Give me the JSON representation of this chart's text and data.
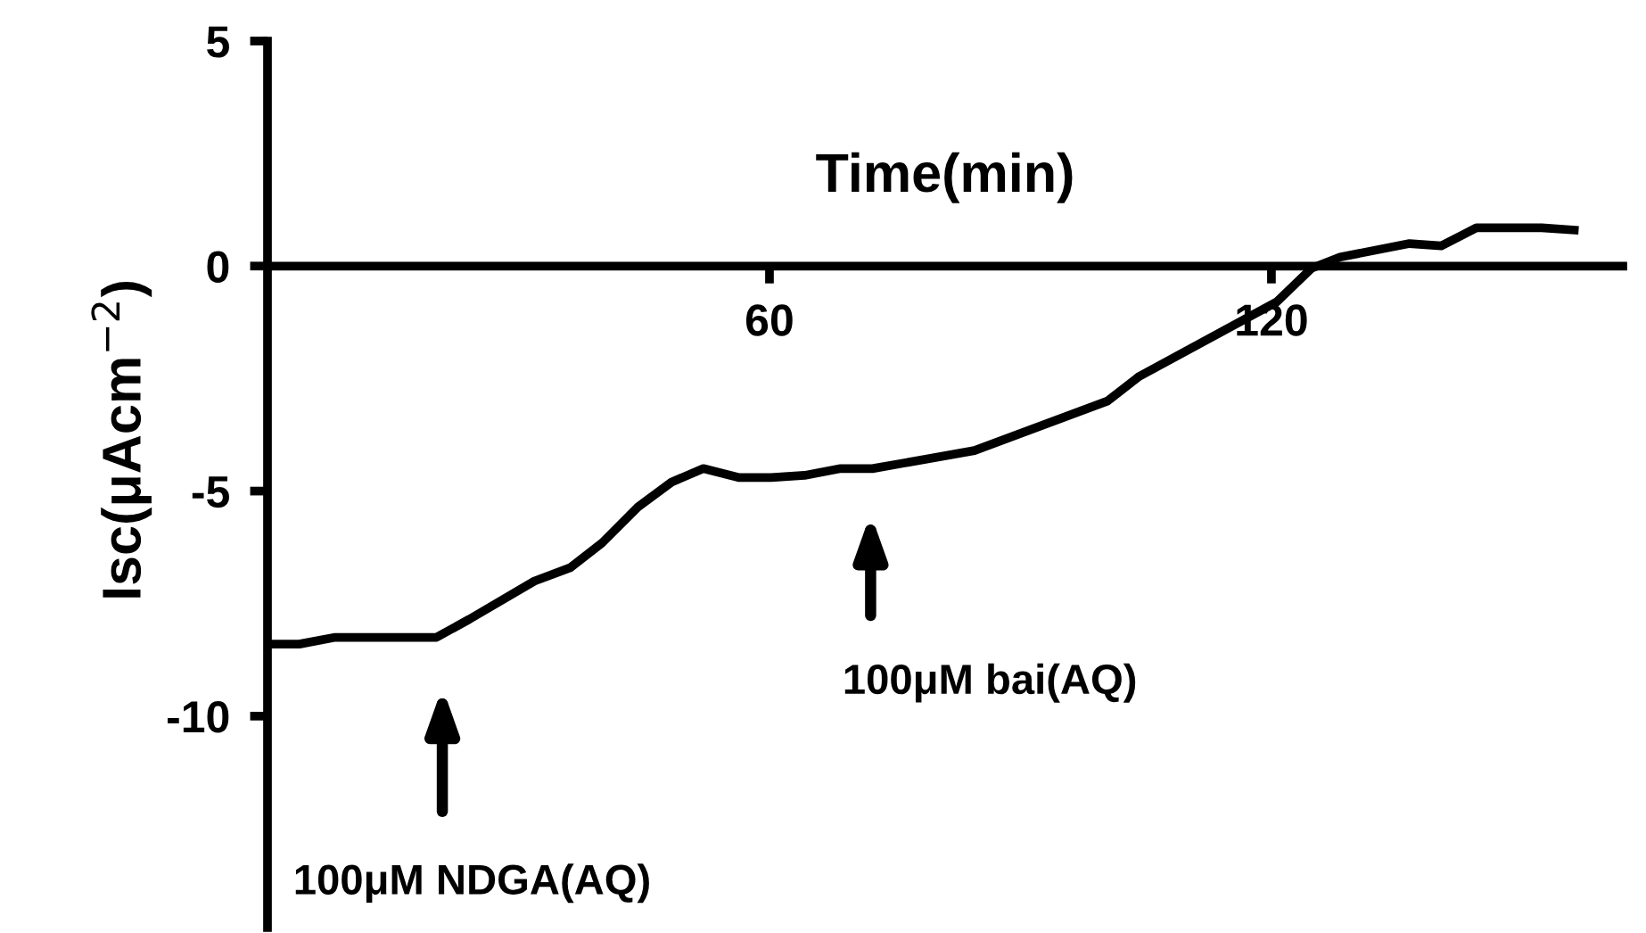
{
  "chart_data": {
    "type": "line",
    "xlabel": "Time(min)",
    "ylabel": "Isc(μAcm$^{−2}$)",
    "x": [
      0.6,
      3.8,
      8.1,
      20.2,
      24.1,
      31.9,
      36.2,
      40,
      44.3,
      48.3,
      52.1,
      56.4,
      60.2,
      64.2,
      68.5,
      72.3,
      84.5,
      100.4,
      104.2,
      120.6,
      124.8,
      128.2,
      136.5,
      140.3,
      144.5,
      152.3,
      156.2
    ],
    "series": [
      {
        "color": "#000000",
        "values": [
          -8.4,
          -8.4,
          -8.25,
          -8.25,
          -7.85,
          -7.0,
          -6.7,
          -6.15,
          -5.35,
          -4.8,
          -4.5,
          -4.7,
          -4.7,
          -4.65,
          -4.5,
          -4.5,
          -4.1,
          -3.0,
          -2.45,
          -0.8,
          -0.05,
          0.2,
          0.5,
          0.45,
          0.85,
          0.85,
          0.8
        ]
      }
    ],
    "xlim": [
      0,
      162
    ],
    "xticks": [
      60,
      120
    ],
    "ylim": [
      -14.7,
      5
    ],
    "yticks": [
      -10,
      -5,
      0,
      5
    ],
    "grid": false,
    "legend": false,
    "marker": "none",
    "line_style": "solid",
    "annotations": [
      "100μM NDGA(AQ)",
      "100μM bai(AQ)"
    ]
  }
}
